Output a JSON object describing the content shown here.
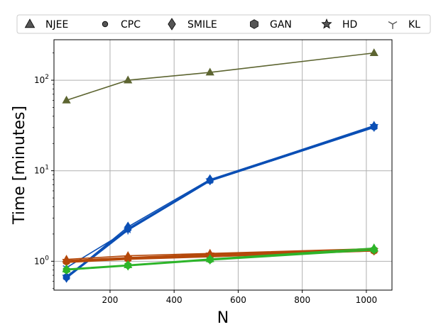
{
  "chart_data": {
    "type": "line",
    "xlabel": "N",
    "ylabel": "Time [minutes]",
    "yscale": "log",
    "xlim": [
      25,
      1080
    ],
    "ylim": [
      0.48,
      280
    ],
    "x_ticks": [
      200,
      400,
      600,
      800,
      1000
    ],
    "x_tick_labels": [
      "200",
      "400",
      "600",
      "800",
      "1000"
    ],
    "y_ticks": [
      1,
      10,
      100
    ],
    "y_tick_base": "10",
    "y_tick_exponents": [
      "0",
      "1",
      "2"
    ],
    "grid": true,
    "legend_position": "top, above plot",
    "legend": [
      {
        "name": "NJEE",
        "marker": "triangle"
      },
      {
        "name": "CPC",
        "marker": "circle"
      },
      {
        "name": "SMILE",
        "marker": "diamond"
      },
      {
        "name": "GAN",
        "marker": "hexagon"
      },
      {
        "name": "HD",
        "marker": "star"
      },
      {
        "name": "KL",
        "marker": "tri-down"
      }
    ],
    "x": [
      64,
      256,
      512,
      1024
    ],
    "series": [
      {
        "color": "#5d6531",
        "marker": "triangle",
        "values": [
          60,
          100,
          122,
          200
        ]
      },
      {
        "color": "#0b4fb5",
        "marker": "circle",
        "values": [
          0.65,
          2.2,
          7.7,
          30
        ]
      },
      {
        "color": "#0b4fb5",
        "marker": "diamond",
        "values": [
          0.66,
          2.4,
          8.0,
          31
        ]
      },
      {
        "color": "#0b4fb5",
        "marker": "hexagon",
        "values": [
          0.67,
          2.3,
          7.8,
          30.5
        ]
      },
      {
        "color": "#0b4fb5",
        "marker": "star",
        "values": [
          0.68,
          2.25,
          7.9,
          31.5
        ]
      },
      {
        "color": "#0b4fb5",
        "marker": "tri-down",
        "values": [
          0.85,
          2.2,
          7.7,
          30
        ]
      },
      {
        "color": "#b5480a",
        "marker": "triangle",
        "values": [
          1.05,
          1.15,
          1.22,
          1.38
        ]
      },
      {
        "color": "#b5480a",
        "marker": "circle",
        "values": [
          0.97,
          1.05,
          1.12,
          1.3
        ]
      },
      {
        "color": "#b5480a",
        "marker": "diamond",
        "values": [
          1.0,
          1.08,
          1.18,
          1.32
        ]
      },
      {
        "color": "#b5480a",
        "marker": "hexagon",
        "values": [
          0.99,
          1.06,
          1.15,
          1.3
        ]
      },
      {
        "color": "#b5480a",
        "marker": "star",
        "values": [
          1.02,
          1.1,
          1.2,
          1.34
        ]
      },
      {
        "color": "#2db52a",
        "marker": "triangle",
        "values": [
          0.82,
          0.91,
          1.06,
          1.4
        ]
      },
      {
        "color": "#2db52a",
        "marker": "circle",
        "values": [
          0.8,
          0.89,
          1.03,
          1.33
        ]
      },
      {
        "color": "#2db52a",
        "marker": "diamond",
        "values": [
          0.81,
          0.9,
          1.05,
          1.35
        ]
      },
      {
        "color": "#2db52a",
        "marker": "hexagon",
        "values": [
          0.8,
          0.9,
          1.04,
          1.34
        ]
      }
    ]
  }
}
